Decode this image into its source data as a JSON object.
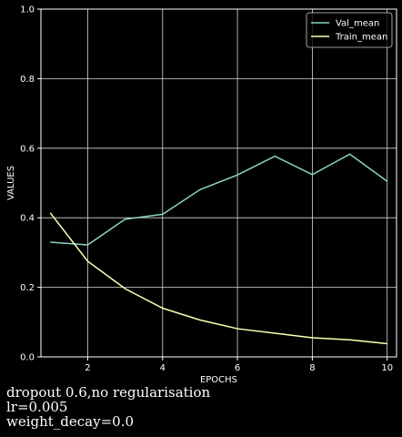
{
  "chart_data": {
    "type": "line",
    "xlabel": "EPOCHS",
    "ylabel": "VALUES",
    "xlim": [
      0.75,
      10.25
    ],
    "ylim": [
      0,
      1
    ],
    "x": [
      1,
      2,
      3,
      4,
      5,
      6,
      7,
      8,
      9,
      10
    ],
    "x_ticks": [
      "2",
      "4",
      "6",
      "8",
      "10"
    ],
    "y_ticks": [
      "0.0",
      "0.2",
      "0.4",
      "0.6",
      "0.8",
      "1.0"
    ],
    "grid": true,
    "legend_position": "top-right",
    "series": [
      {
        "name": "Val_mean",
        "color": "#8dd3c7",
        "values": [
          0.33,
          0.322,
          0.396,
          0.41,
          0.481,
          0.523,
          0.577,
          0.524,
          0.583,
          0.505
        ]
      },
      {
        "name": "Train_mean",
        "color": "#ffffb3",
        "values": [
          0.414,
          0.275,
          0.196,
          0.14,
          0.106,
          0.081,
          0.068,
          0.055,
          0.049,
          0.038
        ]
      }
    ]
  },
  "caption": {
    "line1": "dropout 0.6,no regularisation",
    "line2": "lr=0.005",
    "line3": "weight_decay=0.0"
  }
}
